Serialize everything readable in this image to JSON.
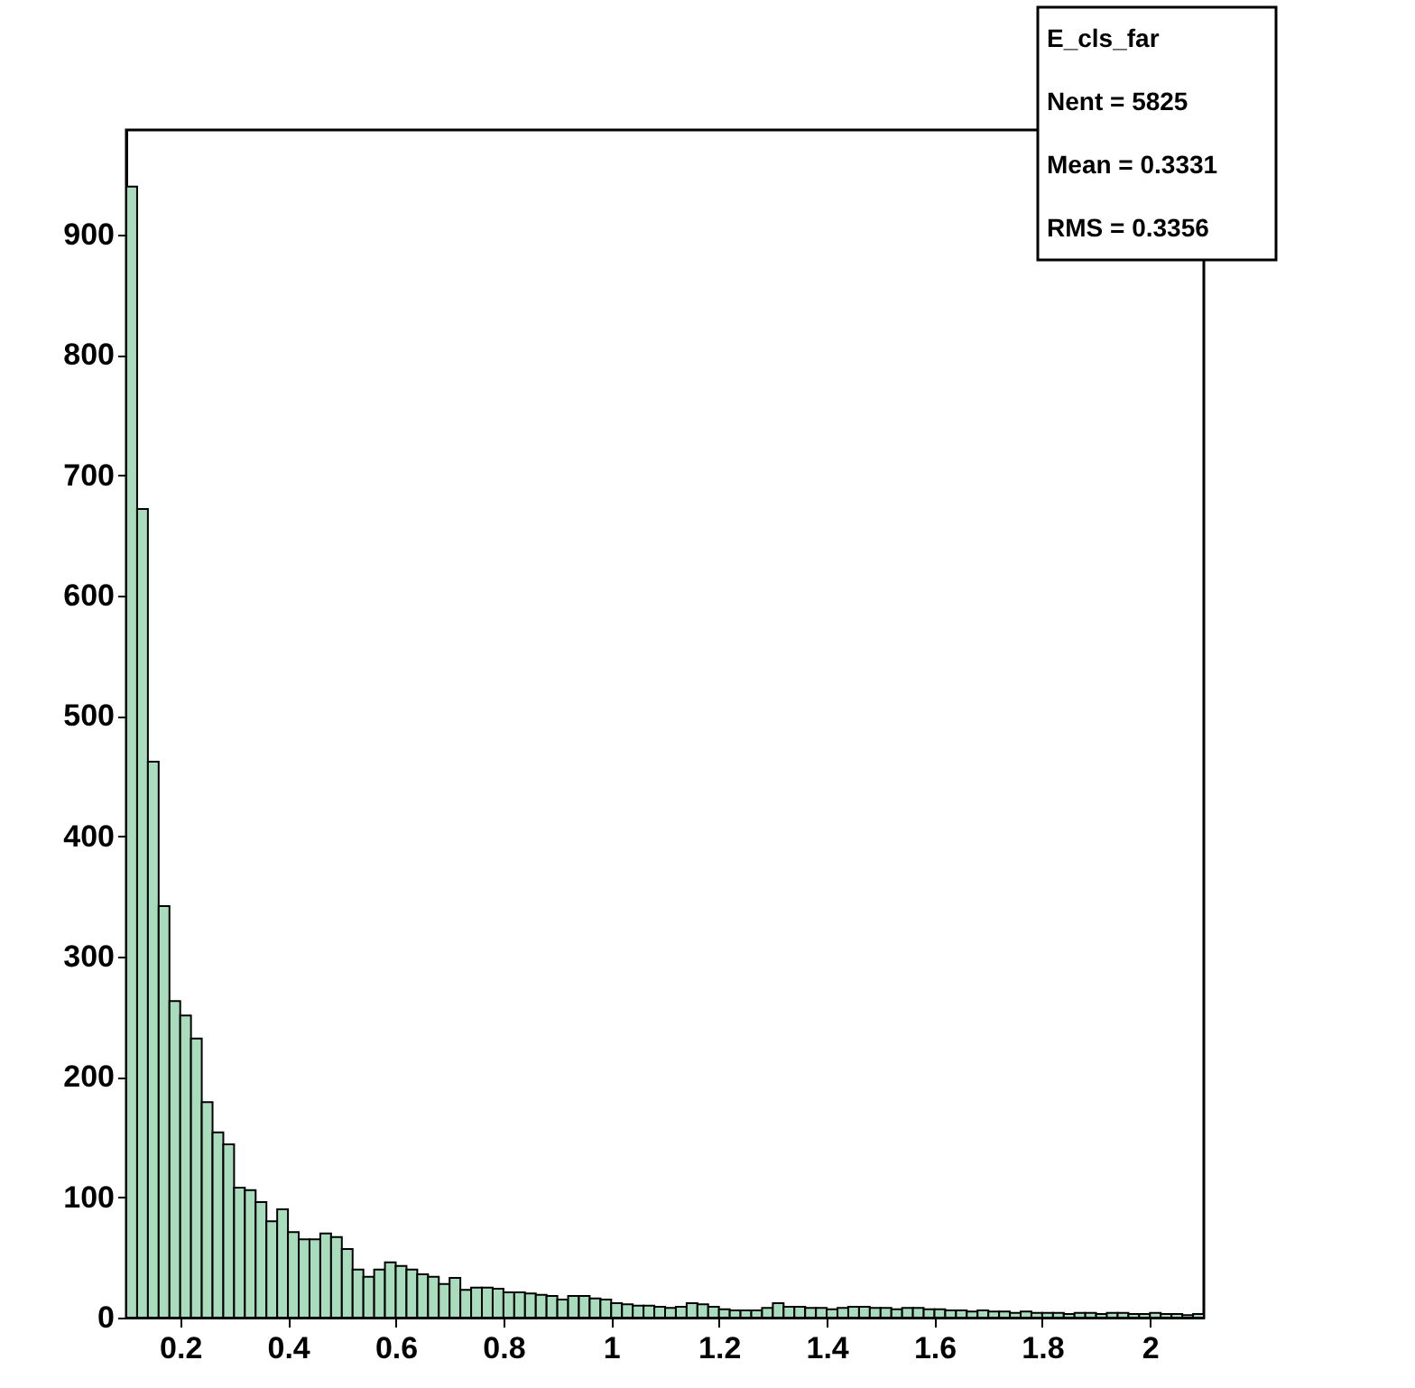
{
  "chart_data": {
    "type": "histogram",
    "bins": [
      0.1,
      0.12,
      0.14,
      0.16,
      0.18,
      0.2,
      0.22,
      0.24,
      0.26,
      0.28,
      0.3,
      0.32,
      0.34,
      0.36,
      0.38,
      0.4,
      0.42,
      0.44,
      0.46,
      0.48,
      0.5,
      0.52,
      0.54,
      0.56,
      0.58,
      0.6,
      0.62,
      0.64,
      0.66,
      0.68,
      0.7,
      0.72,
      0.74,
      0.76,
      0.78,
      0.8,
      0.82,
      0.84,
      0.86,
      0.88,
      0.9,
      0.92,
      0.94,
      0.96,
      0.98,
      1.0,
      1.02,
      1.04,
      1.06,
      1.08,
      1.1,
      1.12,
      1.14,
      1.16,
      1.18,
      1.2,
      1.22,
      1.24,
      1.26,
      1.28,
      1.3,
      1.32,
      1.34,
      1.36,
      1.38,
      1.4,
      1.42,
      1.44,
      1.46,
      1.48,
      1.5,
      1.52,
      1.54,
      1.56,
      1.58,
      1.6,
      1.62,
      1.64,
      1.66,
      1.68,
      1.7,
      1.72,
      1.74,
      1.76,
      1.78,
      1.8,
      1.82,
      1.84,
      1.86,
      1.88,
      1.9,
      1.92,
      1.94,
      1.96,
      1.98,
      2.0,
      2.02,
      2.04,
      2.06,
      2.08,
      2.1
    ],
    "values": [
      940,
      672,
      462,
      342,
      263,
      251,
      232,
      179,
      154,
      144,
      108,
      106,
      96,
      80,
      90,
      71,
      65,
      65,
      70,
      67,
      57,
      40,
      34,
      40,
      46,
      43,
      40,
      36,
      34,
      28,
      33,
      23,
      25,
      25,
      24,
      21,
      21,
      20,
      19,
      18,
      15,
      18,
      18,
      16,
      15,
      12,
      11,
      10,
      10,
      9,
      8,
      9,
      12,
      11,
      9,
      7,
      6,
      6,
      6,
      8,
      12,
      9,
      9,
      8,
      8,
      7,
      8,
      9,
      9,
      8,
      8,
      7,
      8,
      8,
      7,
      7,
      6,
      6,
      5,
      6,
      5,
      5,
      4,
      5,
      4,
      4,
      4,
      3,
      4,
      4,
      3,
      4,
      4,
      3,
      3,
      4,
      3,
      3,
      2,
      3
    ],
    "color": "#a8dcbc",
    "xlim": [
      0.1,
      2.1
    ],
    "ylim": [
      0,
      987
    ],
    "xticks": [
      0.2,
      0.4,
      0.6,
      0.8,
      1,
      1.2,
      1.4,
      1.6,
      1.8,
      2
    ],
    "yticks": [
      0,
      100,
      200,
      300,
      400,
      500,
      600,
      700,
      800,
      900
    ],
    "grid": false,
    "annotations": [
      "E_cls_far",
      "Nent  =  5825",
      "Mean    =  0.3331",
      "RMS      =  0.3356"
    ]
  }
}
